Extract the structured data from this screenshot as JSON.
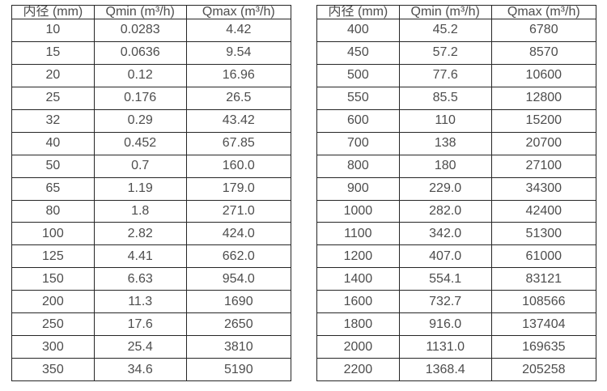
{
  "page": {
    "background_color": "#ffffff",
    "border_color": "#262626",
    "text_color": "#4d4d4d"
  },
  "tables": [
    {
      "name": "flow-table-small-diameters",
      "headers": [
        "内径 (mm)",
        "Qmin (m³/h)",
        "Qmax (m³/h)"
      ],
      "rows": [
        [
          "10",
          "0.0283",
          "4.42"
        ],
        [
          "15",
          "0.0636",
          "9.54"
        ],
        [
          "20",
          "0.12",
          "16.96"
        ],
        [
          "25",
          "0.176",
          "26.5"
        ],
        [
          "32",
          "0.29",
          "43.42"
        ],
        [
          "40",
          "0.452",
          "67.85"
        ],
        [
          "50",
          "0.7",
          "160.0"
        ],
        [
          "65",
          "1.19",
          "179.0"
        ],
        [
          "80",
          "1.8",
          "271.0"
        ],
        [
          "100",
          "2.82",
          "424.0"
        ],
        [
          "125",
          "4.41",
          "662.0"
        ],
        [
          "150",
          "6.63",
          "954.0"
        ],
        [
          "200",
          "11.3",
          "1690"
        ],
        [
          "250",
          "17.6",
          "2650"
        ],
        [
          "300",
          "25.4",
          "3810"
        ],
        [
          "350",
          "34.6",
          "5190"
        ]
      ]
    },
    {
      "name": "flow-table-large-diameters",
      "headers": [
        "内径 (mm)",
        "Qmin (m³/h)",
        "Qmax (m³/h)"
      ],
      "rows": [
        [
          "400",
          "45.2",
          "6780"
        ],
        [
          "450",
          "57.2",
          "8570"
        ],
        [
          "500",
          "77.6",
          "10600"
        ],
        [
          "550",
          "85.5",
          "12800"
        ],
        [
          "600",
          "110",
          "15200"
        ],
        [
          "700",
          "138",
          "20700"
        ],
        [
          "800",
          "180",
          "27100"
        ],
        [
          "900",
          "229.0",
          "34300"
        ],
        [
          "1000",
          "282.0",
          "42400"
        ],
        [
          "1100",
          "342.0",
          "51300"
        ],
        [
          "1200",
          "407.0",
          "61000"
        ],
        [
          "1400",
          "554.1",
          "83121"
        ],
        [
          "1600",
          "732.7",
          "108566"
        ],
        [
          "1800",
          "916.0",
          "137404"
        ],
        [
          "2000",
          "1131.0",
          "169635"
        ],
        [
          "2200",
          "1368.4",
          "205258"
        ]
      ]
    }
  ]
}
